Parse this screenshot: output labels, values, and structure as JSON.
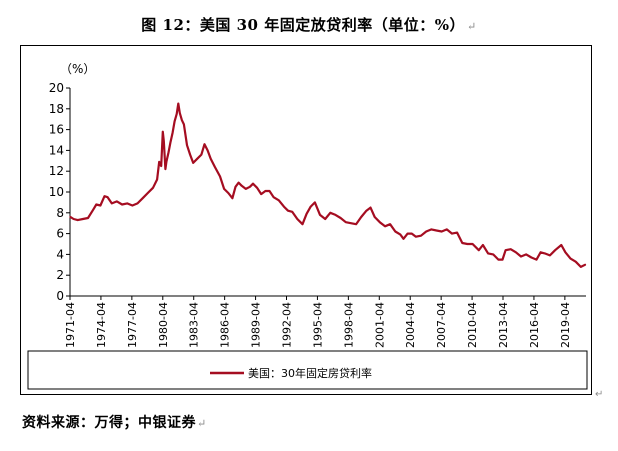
{
  "header": {
    "title": "图 12：美国 30 年固定放贷利率（单位：%）"
  },
  "footer": {
    "source": "资料来源：万得；中银证券"
  },
  "marks": {
    "paragraph": "↵"
  },
  "chart_data": {
    "type": "line",
    "title": "",
    "xlabel": "",
    "ylabel": "（%）",
    "ylim": [
      0,
      20
    ],
    "yticks": [
      0,
      2,
      4,
      6,
      8,
      10,
      12,
      14,
      16,
      18,
      20
    ],
    "xlim": [
      1971.25,
      2021.3
    ],
    "xtick_labels": [
      "1971-04",
      "1974-04",
      "1977-04",
      "1980-04",
      "1983-04",
      "1986-04",
      "1989-04",
      "1992-04",
      "1995-04",
      "1998-04",
      "2001-04",
      "2004-04",
      "2007-04",
      "2010-04",
      "2013-04",
      "2016-04",
      "2019-04"
    ],
    "grid": false,
    "legend_position": "bottom",
    "color": "#a50d21",
    "series": [
      {
        "name": "美国：30年固定房贷利率",
        "x": [
          1971.3,
          1971.6,
          1972.0,
          1972.5,
          1973.0,
          1973.5,
          1973.8,
          1974.2,
          1974.6,
          1974.9,
          1975.3,
          1975.8,
          1976.3,
          1976.8,
          1977.3,
          1977.8,
          1978.3,
          1978.8,
          1979.3,
          1979.7,
          1979.9,
          1980.1,
          1980.25,
          1980.35,
          1980.5,
          1980.6,
          1980.8,
          1981.0,
          1981.2,
          1981.4,
          1981.6,
          1981.75,
          1981.9,
          1982.1,
          1982.3,
          1982.6,
          1982.9,
          1983.2,
          1983.6,
          1984.0,
          1984.3,
          1984.6,
          1984.9,
          1985.3,
          1985.8,
          1986.2,
          1986.6,
          1987.0,
          1987.3,
          1987.6,
          1987.9,
          1988.3,
          1988.7,
          1989.0,
          1989.4,
          1989.8,
          1990.2,
          1990.6,
          1991.0,
          1991.5,
          1992.0,
          1992.4,
          1992.8,
          1993.3,
          1993.8,
          1994.2,
          1994.6,
          1995.0,
          1995.5,
          1996.0,
          1996.5,
          1997.0,
          1997.5,
          1998.0,
          1998.5,
          1999.0,
          1999.5,
          2000.0,
          2000.4,
          2000.8,
          2001.3,
          2001.8,
          2002.3,
          2002.8,
          2003.3,
          2003.6,
          2004.0,
          2004.4,
          2004.8,
          2005.3,
          2005.8,
          2006.3,
          2006.8,
          2007.3,
          2007.8,
          2008.3,
          2008.8,
          2009.3,
          2009.8,
          2010.3,
          2010.9,
          2011.3,
          2011.8,
          2012.3,
          2012.8,
          2013.2,
          2013.5,
          2014.0,
          2014.5,
          2015.0,
          2015.5,
          2016.0,
          2016.5,
          2016.9,
          2017.3,
          2017.8,
          2018.3,
          2018.9,
          2019.3,
          2019.8,
          2020.3,
          2020.8,
          2021.2
        ],
        "values": [
          7.6,
          7.4,
          7.3,
          7.4,
          7.5,
          8.3,
          8.8,
          8.7,
          9.6,
          9.5,
          8.9,
          9.1,
          8.8,
          8.9,
          8.7,
          8.9,
          9.4,
          9.9,
          10.4,
          11.2,
          12.9,
          12.5,
          15.8,
          14.9,
          12.2,
          12.9,
          13.8,
          14.8,
          15.7,
          16.8,
          17.5,
          18.5,
          17.6,
          16.9,
          16.5,
          14.5,
          13.6,
          12.8,
          13.2,
          13.6,
          14.6,
          14.0,
          13.2,
          12.4,
          11.5,
          10.3,
          9.9,
          9.4,
          10.5,
          10.9,
          10.6,
          10.3,
          10.5,
          10.8,
          10.4,
          9.8,
          10.1,
          10.1,
          9.5,
          9.2,
          8.6,
          8.2,
          8.1,
          7.4,
          6.9,
          7.9,
          8.6,
          9.0,
          7.8,
          7.4,
          8.0,
          7.8,
          7.5,
          7.1,
          7.0,
          6.9,
          7.6,
          8.2,
          8.5,
          7.6,
          7.1,
          6.7,
          6.9,
          6.2,
          5.9,
          5.5,
          6.0,
          6.0,
          5.7,
          5.8,
          6.2,
          6.4,
          6.3,
          6.2,
          6.4,
          6.0,
          6.1,
          5.1,
          5.0,
          5.0,
          4.4,
          4.9,
          4.1,
          4.0,
          3.5,
          3.5,
          4.4,
          4.5,
          4.2,
          3.8,
          4.0,
          3.7,
          3.5,
          4.2,
          4.1,
          3.9,
          4.4,
          4.9,
          4.2,
          3.6,
          3.3,
          2.8,
          3.0
        ]
      }
    ]
  }
}
